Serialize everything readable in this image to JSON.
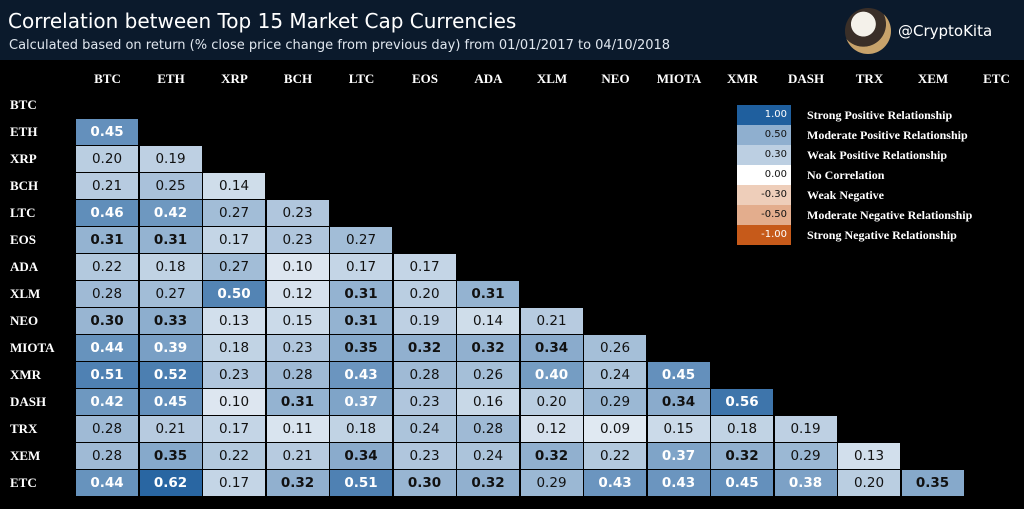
{
  "header": {
    "title": "Correlation between Top 15 Market Cap Currencies",
    "subtitle": "Calculated based on return (% close price change from previous day) from 01/01/2017 to 04/10/2018",
    "handle": "@CryptoKita"
  },
  "chart_data": {
    "type": "heatmap",
    "title": "Correlation between Top 15 Market Cap Currencies",
    "columns": [
      "BTC",
      "ETH",
      "XRP",
      "BCH",
      "LTC",
      "EOS",
      "ADA",
      "XLM",
      "NEO",
      "MIOTA",
      "XMR",
      "DASH",
      "TRX",
      "XEM",
      "ETC"
    ],
    "rows": [
      "BTC",
      "ETH",
      "XRP",
      "BCH",
      "LTC",
      "EOS",
      "ADA",
      "XLM",
      "NEO",
      "MIOTA",
      "XMR",
      "DASH",
      "TRX",
      "XEM",
      "ETC"
    ],
    "values": [
      [],
      [
        "0.45"
      ],
      [
        "0.20",
        "0.19"
      ],
      [
        "0.21",
        "0.25",
        "0.14"
      ],
      [
        "0.46",
        "0.42",
        "0.27",
        "0.23"
      ],
      [
        "0.31",
        "0.31",
        "0.17",
        "0.23",
        "0.27"
      ],
      [
        "0.22",
        "0.18",
        "0.27",
        "0.10",
        "0.17",
        "0.17"
      ],
      [
        "0.28",
        "0.27",
        "0.50",
        "0.12",
        "0.31",
        "0.20",
        "0.31"
      ],
      [
        "0.30",
        "0.33",
        "0.13",
        "0.15",
        "0.31",
        "0.19",
        "0.14",
        "0.21"
      ],
      [
        "0.44",
        "0.39",
        "0.18",
        "0.23",
        "0.35",
        "0.32",
        "0.32",
        "0.34",
        "0.26"
      ],
      [
        "0.51",
        "0.52",
        "0.23",
        "0.28",
        "0.43",
        "0.28",
        "0.26",
        "0.40",
        "0.24",
        "0.45"
      ],
      [
        "0.42",
        "0.45",
        "0.10",
        "0.31",
        "0.37",
        "0.23",
        "0.16",
        "0.20",
        "0.29",
        "0.34",
        "0.56"
      ],
      [
        "0.28",
        "0.21",
        "0.17",
        "0.11",
        "0.18",
        "0.24",
        "0.28",
        "0.12",
        "0.09",
        "0.15",
        "0.18",
        "0.19"
      ],
      [
        "0.28",
        "0.35",
        "0.22",
        "0.21",
        "0.34",
        "0.23",
        "0.24",
        "0.32",
        "0.22",
        "0.37",
        "0.32",
        "0.29",
        "0.13"
      ],
      [
        "0.44",
        "0.62",
        "0.17",
        "0.32",
        "0.51",
        "0.30",
        "0.32",
        "0.29",
        "0.43",
        "0.43",
        "0.45",
        "0.38",
        "0.20",
        "0.35"
      ]
    ],
    "legend": [
      {
        "value": "1.00",
        "label": "Strong Positive Relationship"
      },
      {
        "value": "0.50",
        "label": "Moderate Positive Relationship"
      },
      {
        "value": "0.30",
        "label": "Weak Positive Relationship"
      },
      {
        "value": "0.00",
        "label": "No Correlation"
      },
      {
        "value": "-0.30",
        "label": "Weak Negative"
      },
      {
        "value": "-0.50",
        "label": "Moderate Negative Relationship"
      },
      {
        "value": "-1.00",
        "label": "Strong Negative Relationship"
      }
    ],
    "color_scale": {
      "strong_positive": "#1f5f9e",
      "no_correlation": "#ffffff",
      "strong_negative": "#c65a1a"
    }
  }
}
